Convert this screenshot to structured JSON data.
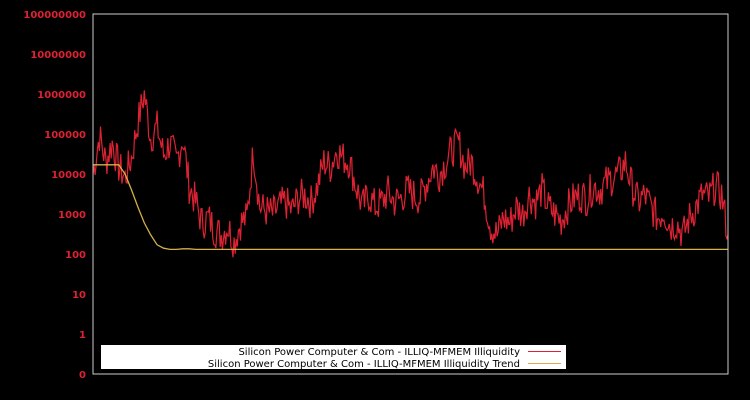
{
  "chart_data": {
    "type": "line",
    "title": "",
    "xlabel": "",
    "ylabel": "",
    "y_scale": "log",
    "y_tick_labels": [
      "0",
      "1",
      "10",
      "100",
      "1000",
      "10000",
      "100000",
      "1000000",
      "10000000",
      "100000000"
    ],
    "ylim": [
      0,
      100000000
    ],
    "grid": false,
    "legend_position": "bottom-inside",
    "colors": {
      "background": "#000000",
      "axis": "#cccccc",
      "tick_label": "#dd2233",
      "illiquidity": "#dd2233",
      "trend": "#d4b04a",
      "legend_bg": "#ffffff"
    },
    "x_samples": 100,
    "series": [
      {
        "name": "Silicon Power Computer & Com - ILLIQ-MFMEM Illiquidity",
        "values": [
          10000,
          90000,
          20000,
          60000,
          15000,
          8000,
          25000,
          200000,
          1000000,
          80000,
          150000,
          30000,
          60000,
          20000,
          80000,
          5000,
          2000,
          600,
          800,
          400,
          300,
          500,
          200,
          600,
          800,
          40000,
          1500,
          1200,
          1000,
          1500,
          2000,
          1200,
          2500,
          3000,
          2000,
          5000,
          20000,
          15000,
          40000,
          25000,
          20000,
          5000,
          1500,
          3000,
          1500,
          2000,
          3500,
          2000,
          2500,
          4000,
          3000,
          2500,
          6000,
          15000,
          10000,
          20000,
          40000,
          60000,
          15000,
          20000,
          8000,
          3000,
          500,
          300,
          800,
          600,
          1500,
          1000,
          3000,
          2000,
          4000,
          1500,
          1000,
          700,
          1500,
          2500,
          3000,
          2500,
          5000,
          4000,
          6000,
          8000,
          10000,
          20000,
          5000,
          2000,
          3000,
          1500,
          800,
          1200,
          500,
          600,
          300,
          800,
          1500,
          3000,
          2500,
          5000,
          3000,
          300
        ]
      },
      {
        "name": "Silicon Power Computer & Com - ILLIQ-MFMEM Illiquidity Trend",
        "values": [
          17000,
          17000,
          17000,
          17000,
          17000,
          10000,
          4000,
          1500,
          600,
          300,
          170,
          140,
          130,
          130,
          135,
          135,
          130,
          130,
          130,
          130,
          130,
          130,
          130,
          130,
          130,
          130,
          130,
          130,
          130,
          130,
          130,
          130,
          130,
          130,
          130,
          130,
          130,
          130,
          130,
          130,
          130,
          130,
          130,
          130,
          130,
          130,
          130,
          130,
          130,
          130,
          130,
          130,
          130,
          130,
          130,
          130,
          130,
          130,
          130,
          130,
          130,
          130,
          130,
          130,
          130,
          130,
          130,
          130,
          130,
          130,
          130,
          130,
          130,
          130,
          130,
          130,
          130,
          130,
          130,
          130,
          130,
          130,
          130,
          130,
          130,
          130,
          130,
          130,
          130,
          130,
          130,
          130,
          130,
          130,
          130,
          130,
          130,
          130,
          130,
          130
        ]
      }
    ]
  },
  "legend": {
    "items": [
      {
        "label": "Silicon Power Computer & Com - ILLIQ-MFMEM Illiquidity",
        "color": "#dd2233"
      },
      {
        "label": "Silicon Power Computer & Com - ILLIQ-MFMEM Illiquidity Trend",
        "color": "#d4b04a"
      }
    ]
  }
}
